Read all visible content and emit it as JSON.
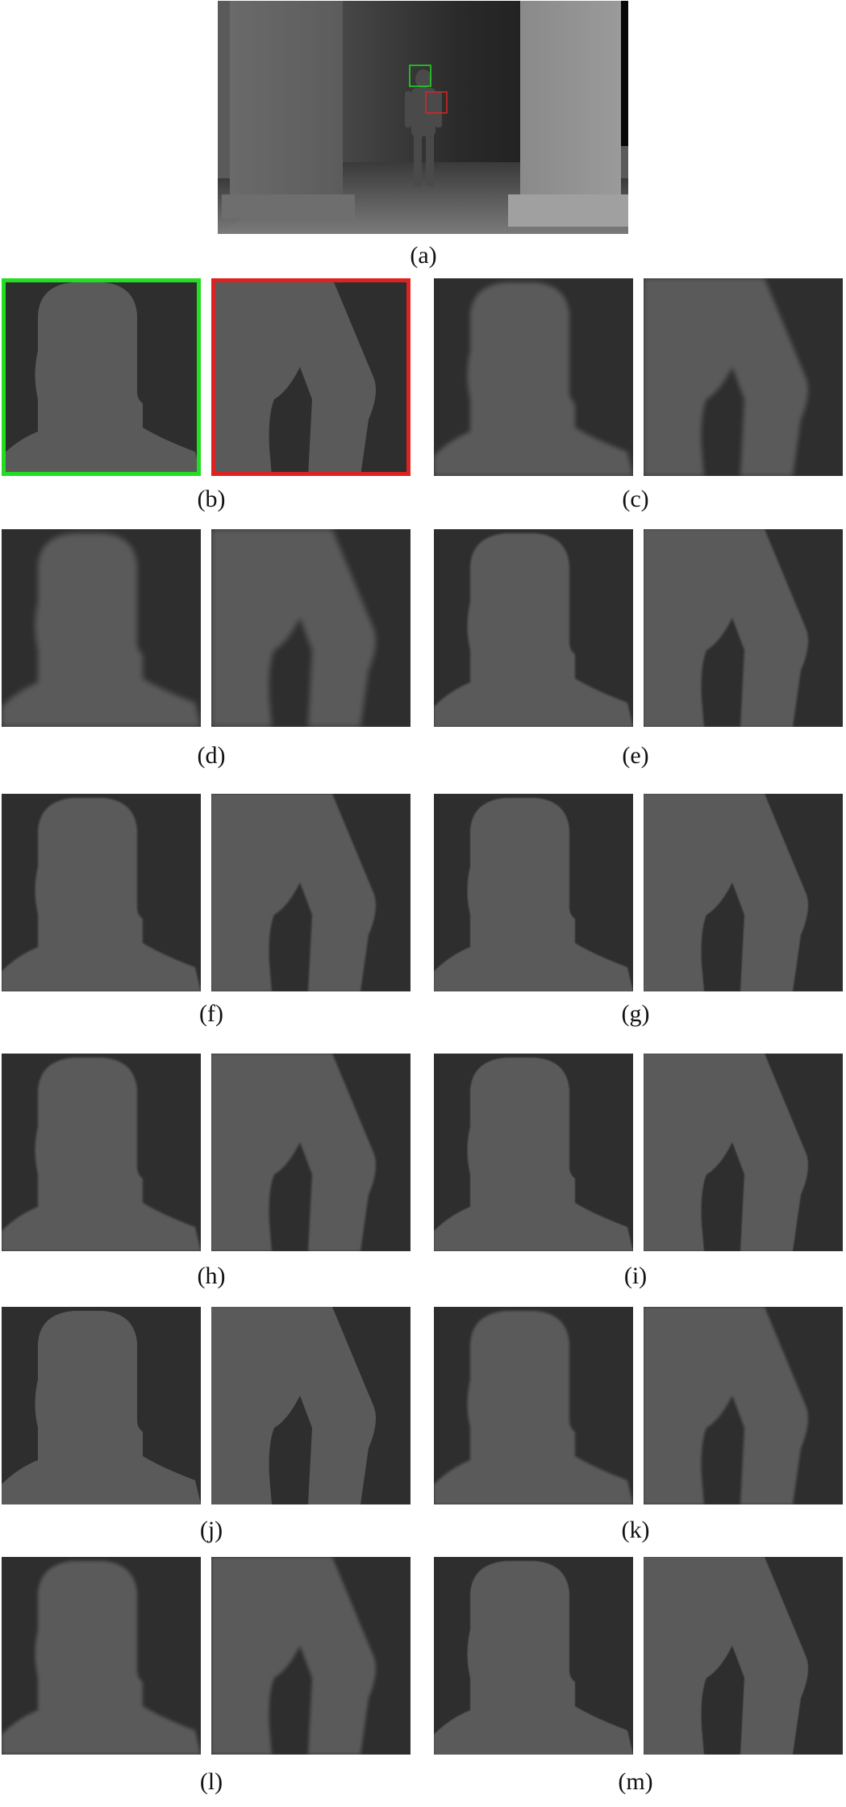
{
  "figure": {
    "panels": [
      {
        "id": "a",
        "label": "(a)"
      },
      {
        "id": "b",
        "label": "(b)",
        "box_colors": {
          "head": "#22dd22",
          "leg": "#dd2222"
        }
      },
      {
        "id": "c",
        "label": "(c)"
      },
      {
        "id": "d",
        "label": "(d)"
      },
      {
        "id": "e",
        "label": "(e)"
      },
      {
        "id": "f",
        "label": "(f)"
      },
      {
        "id": "g",
        "label": "(g)"
      },
      {
        "id": "h",
        "label": "(h)"
      },
      {
        "id": "i",
        "label": "(i)"
      },
      {
        "id": "j",
        "label": "(j)"
      },
      {
        "id": "k",
        "label": "(k)"
      },
      {
        "id": "l",
        "label": "(l)"
      },
      {
        "id": "m",
        "label": "(m)"
      }
    ],
    "colors": {
      "background_region": "#2e2e2e",
      "foreground_region": "#5a5a5a",
      "head_box": "#22dd22",
      "leg_box": "#dd2222"
    }
  }
}
